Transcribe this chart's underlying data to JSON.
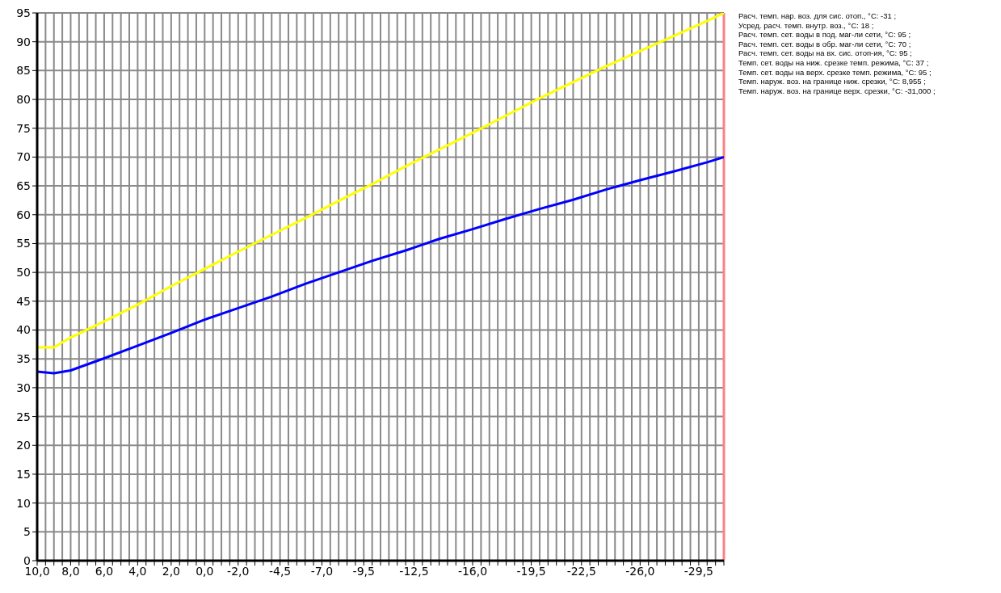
{
  "chart_data": {
    "type": "line",
    "x": [
      10,
      9,
      8,
      6,
      4,
      2,
      0,
      -2,
      -4,
      -6,
      -8,
      -10,
      -12,
      -14,
      -16,
      -18,
      -20,
      -22,
      -24,
      -26,
      -28,
      -30,
      -31
    ],
    "series": [
      {
        "color": "#ffff00",
        "values": [
          37,
          37,
          38.7,
          41.5,
          44.4,
          47.6,
          50.6,
          53.6,
          56.5,
          59.4,
          62.4,
          65.3,
          68.4,
          71.3,
          74.2,
          77.2,
          80.2,
          83,
          85.8,
          88.4,
          91,
          93.6,
          95
        ]
      },
      {
        "color": "#0000ff",
        "values": [
          32.8,
          32.5,
          33,
          35.1,
          37.3,
          39.5,
          41.8,
          43.8,
          45.8,
          48,
          50,
          52,
          53.8,
          55.8,
          57.5,
          59.3,
          61,
          62.6,
          64.4,
          66,
          67.5,
          69.1,
          70
        ]
      }
    ],
    "xlim": [
      10,
      -31
    ],
    "xticks": [
      {
        "value": 10,
        "label": "10,0"
      },
      {
        "value": 9.5,
        "label": null
      },
      {
        "value": 9,
        "label": null
      },
      {
        "value": 8.5,
        "label": null
      },
      {
        "value": 8,
        "label": "8,0"
      },
      {
        "value": 7.5,
        "label": null
      },
      {
        "value": 7,
        "label": null
      },
      {
        "value": 6.5,
        "label": null
      },
      {
        "value": 6,
        "label": "6,0"
      },
      {
        "value": 5.5,
        "label": null
      },
      {
        "value": 5,
        "label": null
      },
      {
        "value": 4.5,
        "label": null
      },
      {
        "value": 4,
        "label": "4,0"
      },
      {
        "value": 3.5,
        "label": null
      },
      {
        "value": 3,
        "label": null
      },
      {
        "value": 2.5,
        "label": null
      },
      {
        "value": 2,
        "label": "2,0"
      },
      {
        "value": 1.5,
        "label": null
      },
      {
        "value": 1,
        "label": null
      },
      {
        "value": 0.5,
        "label": null
      },
      {
        "value": 0,
        "label": "0,0"
      },
      {
        "value": -0.5,
        "label": null
      },
      {
        "value": -1,
        "label": null
      },
      {
        "value": -1.5,
        "label": null
      },
      {
        "value": -2,
        "label": "-2,0"
      },
      {
        "value": -2.5,
        "label": null
      },
      {
        "value": -3,
        "label": null
      },
      {
        "value": -3.5,
        "label": null
      },
      {
        "value": -4,
        "label": null
      },
      {
        "value": -4.5,
        "label": "-4,5"
      },
      {
        "value": -5,
        "label": null
      },
      {
        "value": -5.5,
        "label": null
      },
      {
        "value": -6,
        "label": null
      },
      {
        "value": -6.5,
        "label": null
      },
      {
        "value": -7,
        "label": "-7,0"
      },
      {
        "value": -7.5,
        "label": null
      },
      {
        "value": -8,
        "label": null
      },
      {
        "value": -8.5,
        "label": null
      },
      {
        "value": -9,
        "label": null
      },
      {
        "value": -9.5,
        "label": "-9,5"
      },
      {
        "value": -10,
        "label": null
      },
      {
        "value": -10.5,
        "label": null
      },
      {
        "value": -11,
        "label": null
      },
      {
        "value": -11.5,
        "label": null
      },
      {
        "value": -12,
        "label": null
      },
      {
        "value": -12.5,
        "label": "-12,5"
      },
      {
        "value": -13,
        "label": null
      },
      {
        "value": -13.5,
        "label": null
      },
      {
        "value": -14,
        "label": null
      },
      {
        "value": -14.5,
        "label": null
      },
      {
        "value": -15,
        "label": null
      },
      {
        "value": -15.5,
        "label": null
      },
      {
        "value": -16,
        "label": "-16,0"
      },
      {
        "value": -16.5,
        "label": null
      },
      {
        "value": -17,
        "label": null
      },
      {
        "value": -17.5,
        "label": null
      },
      {
        "value": -18,
        "label": null
      },
      {
        "value": -18.5,
        "label": null
      },
      {
        "value": -19,
        "label": null
      },
      {
        "value": -19.5,
        "label": "-19,5"
      },
      {
        "value": -20,
        "label": null
      },
      {
        "value": -20.5,
        "label": null
      },
      {
        "value": -21,
        "label": null
      },
      {
        "value": -21.5,
        "label": null
      },
      {
        "value": -22,
        "label": null
      },
      {
        "value": -22.5,
        "label": "-22,5"
      },
      {
        "value": -23,
        "label": null
      },
      {
        "value": -23.5,
        "label": null
      },
      {
        "value": -24,
        "label": null
      },
      {
        "value": -24.5,
        "label": null
      },
      {
        "value": -25,
        "label": null
      },
      {
        "value": -25.5,
        "label": null
      },
      {
        "value": -26,
        "label": "-26,0"
      },
      {
        "value": -26.5,
        "label": null
      },
      {
        "value": -27,
        "label": null
      },
      {
        "value": -27.5,
        "label": null
      },
      {
        "value": -28,
        "label": null
      },
      {
        "value": -28.5,
        "label": null
      },
      {
        "value": -29,
        "label": null
      },
      {
        "value": -29.5,
        "label": "-29,5"
      },
      {
        "value": -30,
        "label": null
      },
      {
        "value": -30.5,
        "label": null
      },
      {
        "value": -31,
        "label": null
      }
    ],
    "ylim": [
      0,
      95
    ],
    "yticks": [
      0,
      5,
      10,
      15,
      20,
      25,
      30,
      35,
      40,
      45,
      50,
      55,
      60,
      65,
      70,
      75,
      80,
      85,
      90,
      95
    ],
    "grid": true,
    "marker": "none",
    "line_style": "solid",
    "ref_lines": [
      {
        "axis": "x",
        "value": -31,
        "color": "#ff8080"
      }
    ],
    "annotations": [
      "Расч. темп. нар. воз. для сис. отоп.,  °C: -31 ;",
      "Усред. расч. темп. внутр. воз.,  °C: 18 ;",
      "Расч. темп. сет. воды в под. маг-ли сети,  °C: 95 ;",
      "Расч. темп. сет. воды в обр. маг-ли сети,  °C: 70 ;",
      "Расч. темп. сет. воды на вх. сис. отоп-ия,  °C: 95 ;",
      "Темп. сет. воды на ниж. срезке темп. режима,  °C: 37 ;",
      "Темп. сет. воды на верх. срезке темп. режима,  °C: 95 ;",
      "Темп. наруж. воз. на границе ниж. срезки,  °C: 8,955 ;",
      "Темп. наруж. воз. на границе верх. срезки,  °C: -31,000 ;"
    ]
  }
}
